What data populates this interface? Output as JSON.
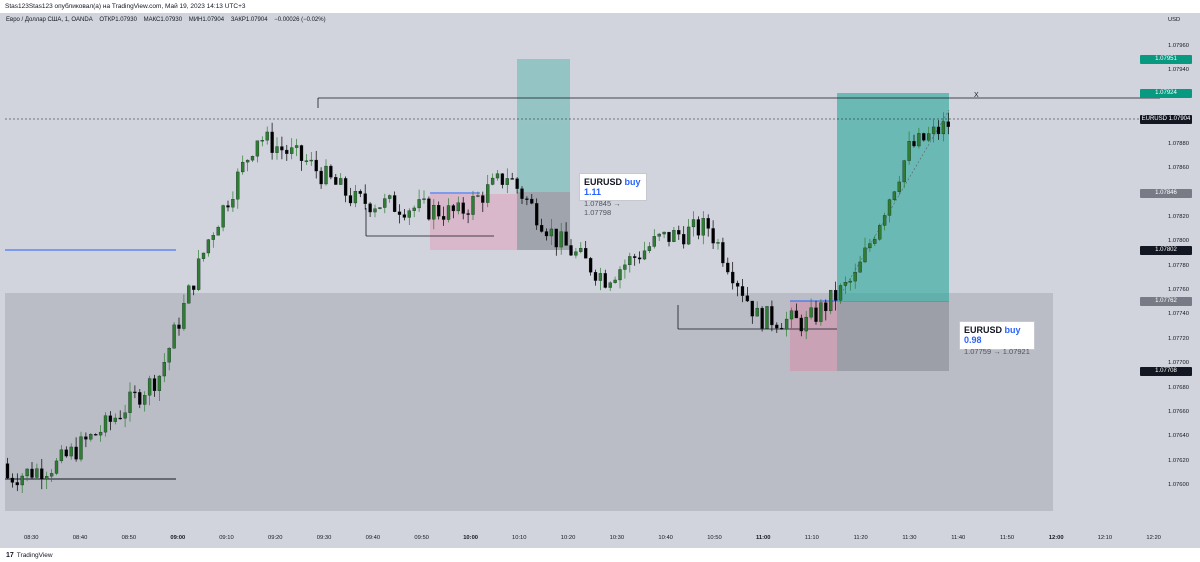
{
  "header": {
    "publisher_line": "Stas123Stas123 опубликовал(а) на TradingView.com, Май 19, 2023 14:13 UTC+3"
  },
  "legend": {
    "symbol": "Евро / Доллар США, 1, OANDA",
    "open": "ОТКР1.07930",
    "high": "МАКС1.07930",
    "low": "МИН1.07904",
    "close": "ЗАКР1.07904",
    "change": "−0.00026 (−0.02%)"
  },
  "price_axis": {
    "currency": "USD",
    "labels": [
      "1.07960",
      "1.07940",
      "1.07920",
      "1.07900",
      "1.07880",
      "1.07860",
      "1.07840",
      "1.07820",
      "1.07800",
      "1.07780",
      "1.07760",
      "1.07740",
      "1.07720",
      "1.07700",
      "1.07680",
      "1.07660",
      "1.07640",
      "1.07620",
      "1.07600"
    ]
  },
  "price_tags": [
    {
      "value": "1.07951",
      "color": "#089981"
    },
    {
      "value": "1.07924",
      "color": "#089981"
    },
    {
      "value": "EURUSD",
      "color": "#131722",
      "second": "1.07904"
    },
    {
      "value": "1.07846",
      "color": "#787b86"
    },
    {
      "value": "1.07802",
      "color": "#131722"
    },
    {
      "value": "1.07762",
      "color": "#787b86"
    },
    {
      "value": "1.07708",
      "color": "#131722"
    }
  ],
  "time_axis": {
    "labels": [
      "08:30",
      "08:40",
      "08:50",
      "09:00",
      "09:10",
      "09:20",
      "09:30",
      "09:40",
      "09:50",
      "10:00",
      "10:10",
      "10:20",
      "10:30",
      "10:40",
      "10:50",
      "11:00",
      "11:10",
      "11:20",
      "11:30",
      "11:40",
      "11:50",
      "12:00",
      "12:10",
      "12:20"
    ],
    "bold": [
      "09:00",
      "10:00",
      "11:00",
      "12:00"
    ]
  },
  "trades": [
    {
      "symbol": "EURUSD",
      "side": "buy",
      "ratio": "1.11",
      "range": "1.07845 → 1.07798"
    },
    {
      "symbol": "EURUSD",
      "side": "buy",
      "ratio": "0.98",
      "range": "1.07759 → 1.07921"
    }
  ],
  "close_marker": "X",
  "footer": {
    "brand_mark": "17",
    "brand_name": "TradingView"
  },
  "colors": {
    "up": "#2e7d32",
    "down": "#000000",
    "bg": "#d1d4dc",
    "profit": "#26a69a",
    "loss": "#f06292",
    "zone": "#b2b5be"
  },
  "chart_data": {
    "type": "candlestick",
    "ylim": [
      1.0759,
      1.0797
    ],
    "x": [
      "08:30",
      "08:40",
      "08:50",
      "09:00",
      "09:10",
      "09:20",
      "09:30",
      "09:40",
      "09:50",
      "10:00",
      "10:10",
      "10:20",
      "10:30",
      "10:40",
      "10:50",
      "11:00",
      "11:10",
      "11:20",
      "11:30",
      "11:40"
    ],
    "close": [
      1.07625,
      1.07635,
      1.07665,
      1.07705,
      1.0781,
      1.0789,
      1.0787,
      1.0784,
      1.07835,
      1.0783,
      1.0786,
      1.0781,
      1.0778,
      1.0781,
      1.0782,
      1.0775,
      1.07745,
      1.0778,
      1.0788,
      1.07904
    ]
  }
}
